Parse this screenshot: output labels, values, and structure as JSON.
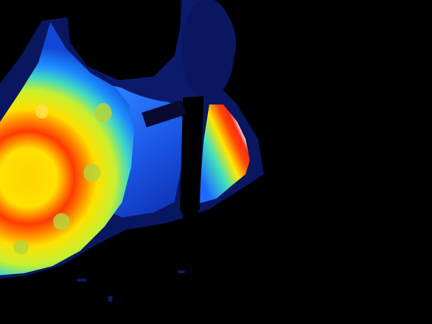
{
  "image": {
    "kind": "thermal-camera-frame",
    "palette": "jet",
    "colors": {
      "background": "#000000",
      "cold": "#0b1a6b",
      "cool": "#1f6cff",
      "mid": "#2ed3c8",
      "warm": "#ffe600",
      "hot": "#ff3b00",
      "hottest": "#ffffff"
    }
  }
}
